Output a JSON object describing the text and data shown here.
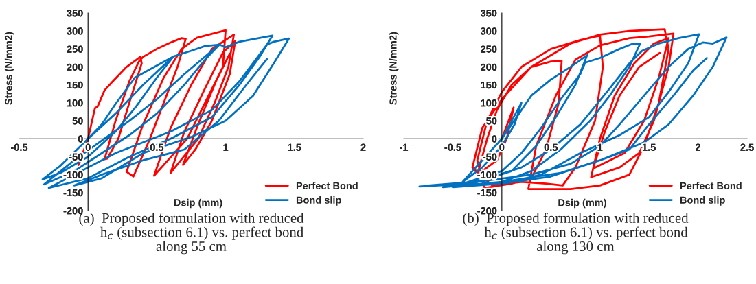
{
  "chart_data": [
    {
      "type": "line",
      "xlabel": "Dsip (mm)",
      "ylabel": "Stress (N/mm2)",
      "xlim": [
        -0.5,
        2
      ],
      "xticks": [
        -0.5,
        0,
        0.5,
        1,
        1.5,
        2
      ],
      "ylim": [
        -200,
        350
      ],
      "yticks": [
        -200,
        -150,
        -100,
        -50,
        0,
        50,
        100,
        150,
        200,
        250,
        300,
        350
      ],
      "grid": false,
      "legend": "bottom right",
      "marker": "none",
      "line_style": "solid",
      "annotations": [
        "(a)  Proposed formulation with reduced\n      h$_{c}$ (subsection 6.1) vs. perfect bond\nalong 55 cm"
      ],
      "series": [
        {
          "name": "Perfect Bond",
          "color": "#ff0000",
          "x": [
            -0.07,
            0,
            0.05,
            0.07,
            0.12,
            0.18,
            0.28,
            0.38,
            0.39,
            0.3,
            0.22,
            0.14,
            0.12,
            0.2,
            0.3,
            0.37,
            0.4,
            0.5,
            0.6,
            0.68,
            0.71,
            0.65,
            0.55,
            0.45,
            0.33,
            0.28,
            0.4,
            0.55,
            0.68,
            0.79,
            0.88,
            1.0,
            0.98,
            0.85,
            0.72,
            0.48,
            0.6,
            0.75,
            0.9,
            1.06,
            1.02,
            0.92,
            0.8,
            0.6,
            0.7,
            0.85,
            0.98,
            1.07,
            1.03,
            0.9,
            0.78,
            0.69,
            0.8,
            0.93,
            1.03
          ],
          "values": [
            -73,
            0,
            85,
            90,
            135,
            160,
            200,
            228,
            210,
            100,
            0,
            -55,
            -57,
            50,
            160,
            215,
            228,
            250,
            268,
            280,
            278,
            200,
            100,
            0,
            -105,
            -92,
            40,
            170,
            250,
            281,
            290,
            302,
            200,
            100,
            0,
            -103,
            30,
            150,
            250,
            290,
            200,
            100,
            0,
            -95,
            20,
            140,
            240,
            272,
            180,
            50,
            -30,
            -73,
            40,
            160,
            237
          ]
        },
        {
          "name": "Bond slip",
          "color": "#0070c0",
          "x": [
            0,
            0.1,
            0.2,
            0.34,
            0.53,
            0.62,
            0.5,
            0.35,
            0.2,
            0.0,
            -0.2,
            -0.33,
            -0.2,
            0,
            0.2,
            0.4,
            0.62,
            0.75,
            0.85,
            0.955,
            0.85,
            0.7,
            0.5,
            0.3,
            0.1,
            -0.1,
            -0.32,
            -0.1,
            0.1,
            0.3,
            0.5,
            0.7,
            0.9,
            0.955,
            1.0,
            1.1,
            1.34,
            1.25,
            1.1,
            0.9,
            0.6,
            0.3,
            0,
            -0.285,
            -0.1,
            0.2,
            0.6,
            0.9,
            1.1,
            1.3,
            1.35,
            1.46,
            1.35,
            1.2,
            1.0,
            0.75,
            0.4,
            0.1,
            -0.1,
            0.1,
            0.4,
            0.7,
            0.95,
            1.15,
            1.3
          ],
          "values": [
            0,
            40,
            97,
            170,
            210,
            229,
            170,
            90,
            20,
            -50,
            -95,
            -113,
            -75,
            0,
            70,
            150,
            229,
            245,
            258,
            262,
            220,
            150,
            70,
            10,
            -40,
            -90,
            -127,
            -60,
            -5,
            50,
            110,
            180,
            245,
            262,
            255,
            270,
            287,
            230,
            150,
            60,
            0,
            -50,
            -110,
            -137,
            -100,
            -40,
            20,
            80,
            160,
            262,
            270,
            279,
            210,
            120,
            50,
            5,
            -40,
            -110,
            -130,
            -100,
            -60,
            -30,
            50,
            150,
            222
          ]
        }
      ]
    },
    {
      "type": "line",
      "xlabel": "Dsip (mm)",
      "ylabel": "Stress (N/mm2)",
      "xlim": [
        -1,
        2.5
      ],
      "xticks": [
        -1,
        -0.5,
        0,
        0.5,
        1,
        1.5,
        2,
        2.5
      ],
      "ylim": [
        -200,
        350
      ],
      "yticks": [
        -200,
        -150,
        -100,
        -50,
        0,
        50,
        100,
        150,
        200,
        250,
        300,
        350
      ],
      "grid": false,
      "legend": "bottom right",
      "marker": "none",
      "line_style": "solid",
      "annotations": [
        "(b)  Proposed formulation with reduced\n      h$_{c}$ (subsection 6.1) vs. perfect bond\nalong 130 cm"
      ],
      "series": [
        {
          "name": "Perfect Bond",
          "color": "#ff0000",
          "x": [
            0,
            0.12,
            0.05,
            -0.05,
            -0.25,
            -0.15,
            -0.05,
            0.1,
            0.3,
            0.5,
            0.61,
            0.58,
            0.45,
            0.3,
            0.1,
            -0.18,
            -0.25,
            -0.15,
            0,
            0.2,
            0.5,
            0.8,
            1.0,
            1.03,
            0.95,
            0.75,
            0.62,
            0.45,
            0.2,
            -0.1,
            -0.3,
            -0.2,
            0,
            0.3,
            0.7,
            1.0,
            1.3,
            1.66,
            1.7,
            1.6,
            1.45,
            1.3,
            1.0,
            0.7,
            0.27,
            0.35,
            0.55,
            0.75,
            1.0,
            1.3,
            1.5,
            1.75,
            1.7,
            1.55,
            1.4,
            1.2,
            0.91,
            1.0,
            1.15,
            1.35,
            1.55,
            1.7,
            1.6,
            1.45,
            1.25,
            0.93,
            1.05,
            1.2,
            1.4,
            1.61
          ],
          "values": [
            0,
            87,
            0,
            -60,
            -100,
            0,
            80,
            150,
            200,
            215,
            217,
            100,
            -30,
            -110,
            -125,
            -137,
            -60,
            50,
            130,
            200,
            250,
            275,
            287,
            200,
            50,
            -80,
            -130,
            -125,
            -120,
            -130,
            -80,
            30,
            110,
            200,
            265,
            290,
            300,
            305,
            250,
            100,
            -20,
            -100,
            -130,
            -140,
            -140,
            -20,
            120,
            220,
            260,
            280,
            285,
            293,
            200,
            50,
            -40,
            -80,
            -107,
            0,
            120,
            210,
            265,
            280,
            170,
            50,
            -40,
            -83,
            20,
            120,
            200,
            239
          ]
        },
        {
          "name": "Bond slip",
          "color": "#0070c0",
          "x": [
            0,
            0.1,
            0.2,
            0.13,
            0,
            -0.2,
            -0.4,
            -0.2,
            0,
            0.15,
            0.3,
            0.5,
            0.7,
            0.87,
            0.75,
            0.55,
            0.35,
            0.1,
            -0.3,
            -0.84,
            -0.4,
            0,
            0.2,
            0.4,
            0.6,
            0.8,
            0.85,
            1.0,
            1.2,
            1.33,
            1.41,
            1.3,
            1.1,
            0.9,
            0.6,
            0.3,
            0,
            -0.6,
            -0.2,
            0.2,
            0.5,
            0.8,
            1.1,
            1.3,
            1.43,
            1.6,
            1.8,
            2.01,
            1.9,
            1.7,
            1.5,
            1.2,
            0.8,
            0.4,
            0,
            -0.75,
            -0.2,
            0.3,
            0.7,
            1.0,
            1.2,
            1.45,
            1.7,
            1.9,
            2.05,
            2.15,
            2.29,
            2.15,
            1.95,
            1.7,
            1.45,
            1.0,
            0.5,
            0,
            -0.5,
            0,
            0.6,
            1.0,
            1.3,
            1.5,
            1.75,
            1.95,
            2.09
          ],
          "values": [
            0,
            50,
            100,
            40,
            -20,
            -80,
            -120,
            -60,
            0,
            60,
            120,
            165,
            200,
            233,
            150,
            60,
            -20,
            -90,
            -125,
            -133,
            -125,
            -90,
            -40,
            30,
            110,
            180,
            212,
            225,
            250,
            264,
            265,
            200,
            120,
            50,
            -30,
            -90,
            -120,
            -135,
            -115,
            -80,
            -30,
            40,
            140,
            210,
            245,
            265,
            280,
            291,
            210,
            130,
            60,
            10,
            -40,
            -100,
            -125,
            -130,
            -118,
            -100,
            -70,
            -20,
            40,
            120,
            200,
            250,
            268,
            265,
            282,
            200,
            120,
            40,
            -10,
            -60,
            -105,
            -125,
            -135,
            -120,
            -95,
            -60,
            -30,
            40,
            120,
            190,
            225
          ]
        }
      ]
    }
  ]
}
